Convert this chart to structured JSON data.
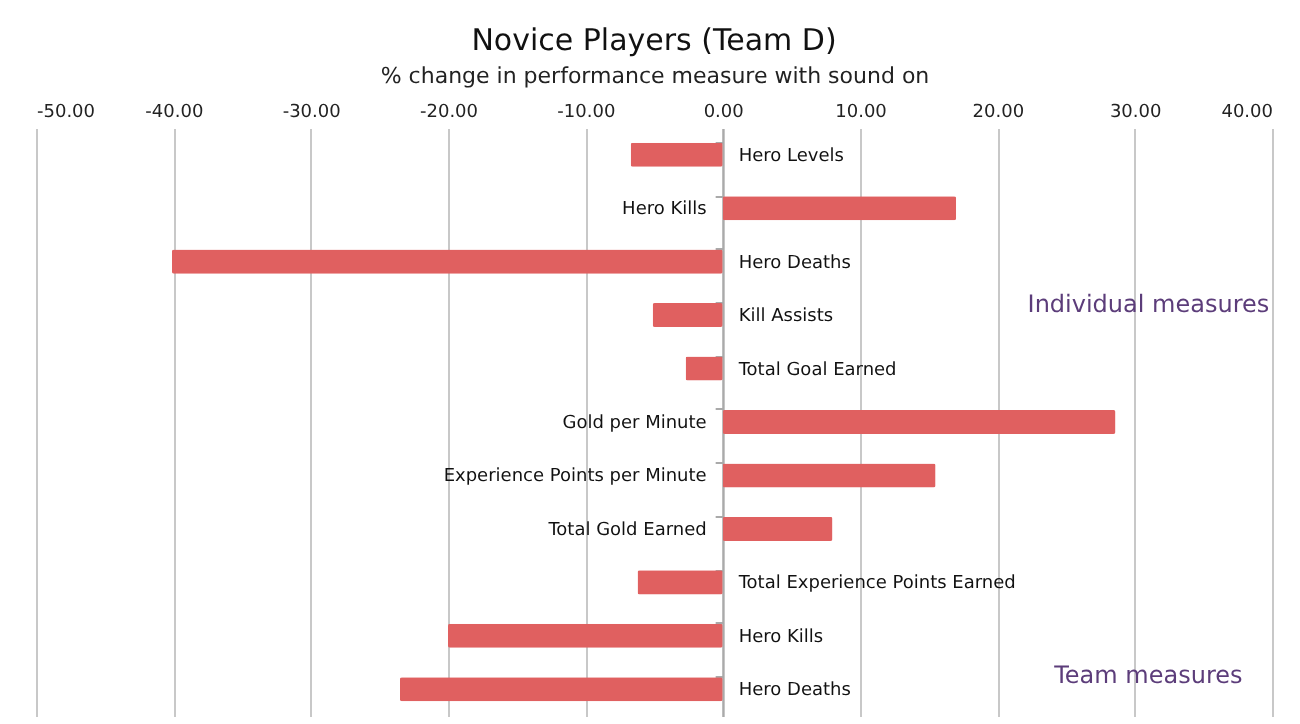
{
  "chart_data": {
    "type": "bar",
    "orientation": "horizontal",
    "title": "Novice Players (Team D)",
    "xlabel": "% change in performance measure with sound on",
    "categories": [
      "Hero Levels",
      "Hero Kills",
      "Hero Deaths",
      "Kill Assists",
      "Total Goal Earned",
      "Gold per Minute",
      "Experience Points per Minute",
      "Total Gold Earned",
      "Total Experience Points Earned",
      "Hero Kills",
      "Hero Deaths"
    ],
    "values": [
      -6.7,
      17.0,
      -40.1,
      -5.1,
      -2.7,
      28.6,
      15.5,
      8.0,
      -6.2,
      -20.0,
      -23.5
    ],
    "color": "#e06060",
    "xlim": [
      -50,
      40
    ],
    "xticks": [
      {
        "value": -50,
        "label": "-50.00"
      },
      {
        "value": -40,
        "label": "-40.00"
      },
      {
        "value": -30,
        "label": "-30.00"
      },
      {
        "value": -20,
        "label": "-20.00"
      },
      {
        "value": -10,
        "label": "-10.00"
      },
      {
        "value": 0,
        "label": "0.00"
      },
      {
        "value": 10,
        "label": "10.00"
      },
      {
        "value": 20,
        "label": "20.00"
      },
      {
        "value": 30,
        "label": "30.00"
      },
      {
        "value": 40,
        "label": "40.00"
      }
    ],
    "grid": "x",
    "annotations": [
      "Individual measures",
      "Team measures"
    ]
  }
}
